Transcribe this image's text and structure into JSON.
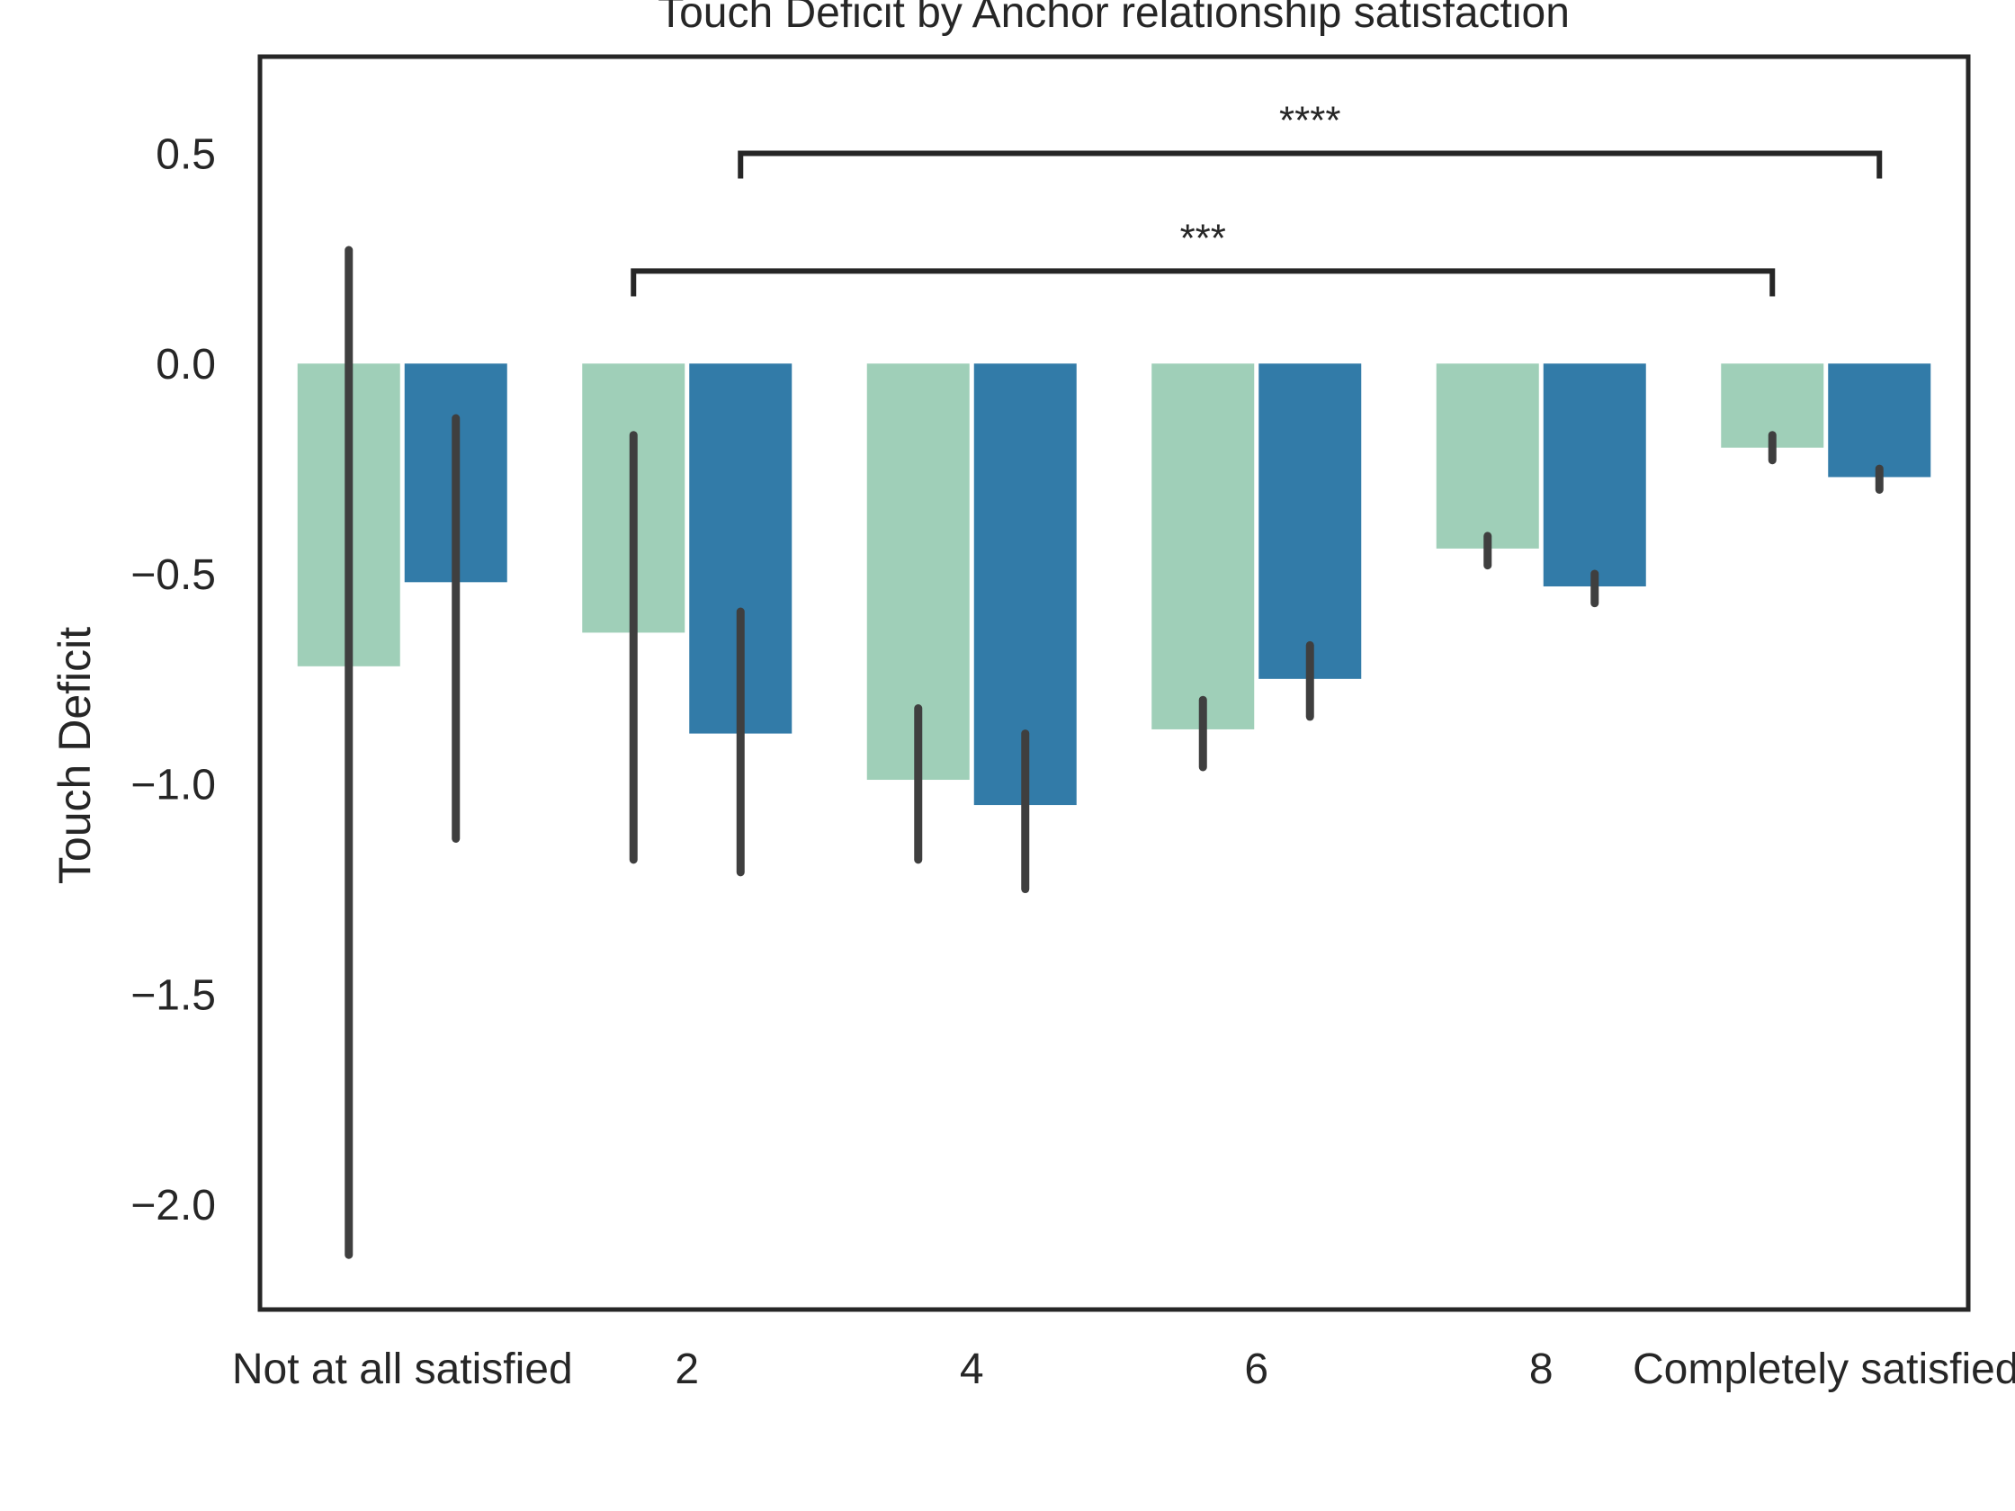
{
  "chart_data": {
    "type": "bar",
    "title": "Touch Deficit by Anchor relationship satisfaction",
    "xlabel": "",
    "ylabel": "Touch Deficit",
    "ylim": [
      -2.25,
      0.73
    ],
    "yticks": [
      0.5,
      0.0,
      -0.5,
      -1.0,
      -1.5,
      -2.0
    ],
    "ytick_labels": [
      "0.5",
      "0.0",
      "−0.5",
      "−1.0",
      "−1.5",
      "−2.0"
    ],
    "categories": [
      "Not at all satisfied",
      "2",
      "4",
      "6",
      "8",
      "Completely satisfied"
    ],
    "grid": false,
    "legend": "none",
    "series": [
      {
        "color": "#9fcfb8",
        "values": [
          -0.72,
          -0.64,
          -0.99,
          -0.87,
          -0.44,
          -0.2
        ],
        "ci_low": [
          -2.12,
          -1.18,
          -1.18,
          -0.96,
          -0.48,
          -0.23
        ],
        "ci_high": [
          0.27,
          -0.17,
          -0.82,
          -0.8,
          -0.41,
          -0.17
        ]
      },
      {
        "color": "#327ba8",
        "values": [
          -0.52,
          -0.88,
          -1.05,
          -0.75,
          -0.53,
          -0.27
        ],
        "ci_low": [
          -1.13,
          -1.21,
          -1.25,
          -0.84,
          -0.57,
          -0.3
        ],
        "ci_high": [
          -0.13,
          -0.59,
          -0.88,
          -0.67,
          -0.5,
          -0.25
        ]
      }
    ],
    "annotations": [
      {
        "text": "****",
        "from": {
          "category": 1,
          "series": 1
        },
        "to": {
          "category": 5,
          "series": 1
        },
        "y": 0.5,
        "tick_y": 0.44
      },
      {
        "text": "***",
        "from": {
          "category": 1,
          "series": 0
        },
        "to": {
          "category": 5,
          "series": 0
        },
        "y": 0.22,
        "tick_y": 0.16
      }
    ],
    "colors": {
      "axis": "#262626",
      "errorbar": "#3f3f3f",
      "text": "#262626"
    }
  }
}
